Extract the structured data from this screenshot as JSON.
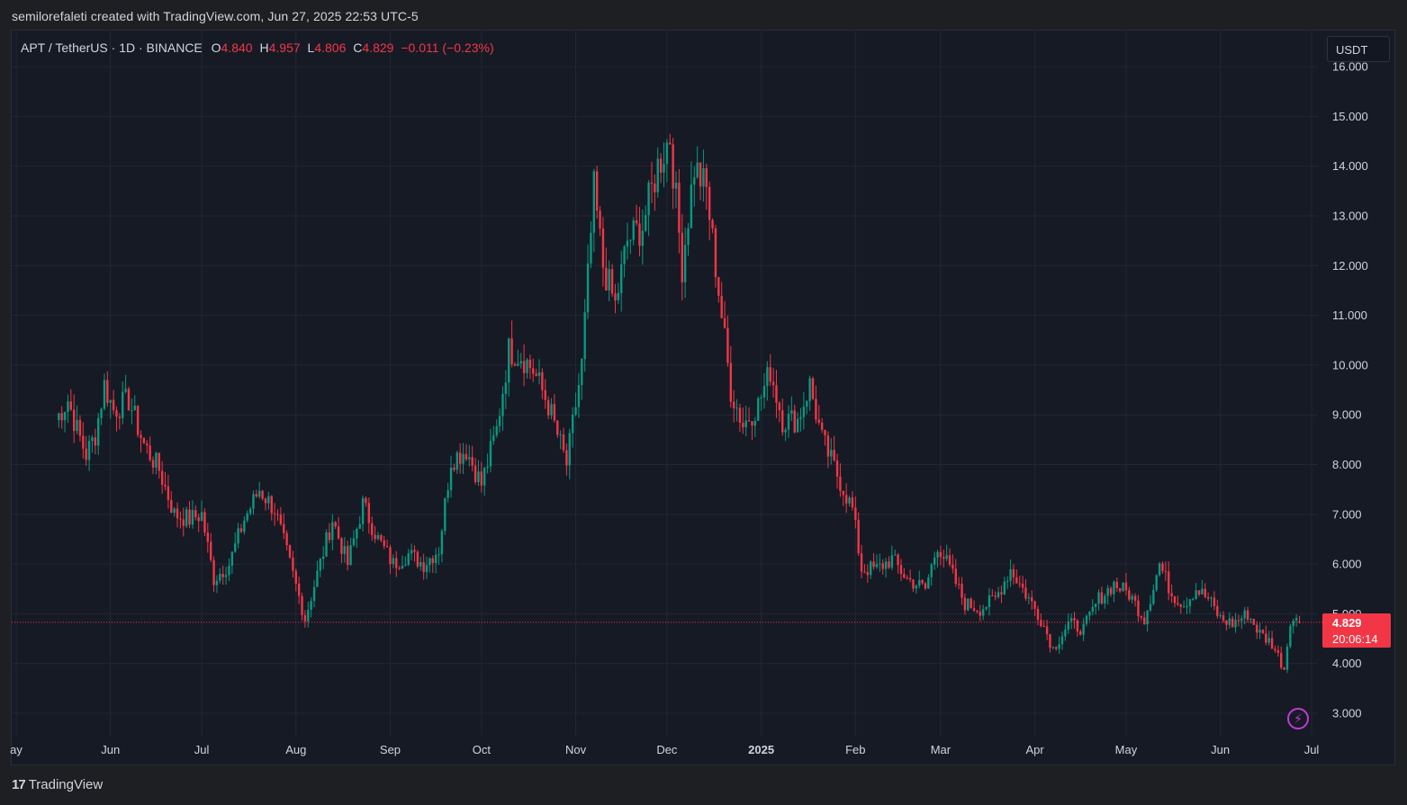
{
  "header": {
    "attribution": "semilorefaleti created with TradingView.com, Jun 27, 2025 22:53 UTC-5"
  },
  "legend": {
    "symbol": "APT / TetherUS · 1D · BINANCE",
    "o_label": "O",
    "o_value": "4.840",
    "h_label": "H",
    "h_value": "4.957",
    "l_label": "L",
    "l_value": "4.806",
    "c_label": "C",
    "c_value": "4.829",
    "change": "−0.011 (−0.23%)"
  },
  "currency_button": "USDT",
  "last_price": {
    "price": "4.829",
    "countdown": "20:06:14"
  },
  "footer": {
    "logo_glyph": "17",
    "brand": "TradingView"
  },
  "colors": {
    "up": "#089981",
    "down": "#f23645",
    "background": "#161a25",
    "grid": "#232734",
    "price_line": "#f23645",
    "accent": "#c23bd4"
  },
  "chart_data": {
    "type": "candlestick",
    "ylim": [
      2.5,
      16.2
    ],
    "y_ticks": [
      "3.000",
      "4.000",
      "5.000",
      "6.000",
      "7.000",
      "8.000",
      "9.000",
      "10.000",
      "11.000",
      "12.000",
      "13.000",
      "14.000",
      "15.000",
      "16.000"
    ],
    "x_ticks": [
      "ay",
      "Jun",
      "Jul",
      "Aug",
      "Sep",
      "Oct",
      "Nov",
      "Dec",
      "2025",
      "Feb",
      "Mar",
      "Apr",
      "May",
      "Jun",
      "Jul"
    ],
    "x_tick_bold": "2025",
    "close_path": [
      [
        "2024-05-14",
        8.9
      ],
      [
        "2024-05-18",
        9.3
      ],
      [
        "2024-05-21",
        8.7
      ],
      [
        "2024-05-24",
        8.2
      ],
      [
        "2024-05-27",
        8.6
      ],
      [
        "2024-05-30",
        9.6
      ],
      [
        "2024-06-02",
        9.1
      ],
      [
        "2024-06-07",
        9.3
      ],
      [
        "2024-06-12",
        8.4
      ],
      [
        "2024-06-17",
        7.9
      ],
      [
        "2024-06-22",
        7.0
      ],
      [
        "2024-06-27",
        6.9
      ],
      [
        "2024-07-01",
        7.0
      ],
      [
        "2024-07-05",
        5.7
      ],
      [
        "2024-07-10",
        6.0
      ],
      [
        "2024-07-15",
        6.9
      ],
      [
        "2024-07-20",
        7.5
      ],
      [
        "2024-07-25",
        7.1
      ],
      [
        "2024-07-30",
        6.0
      ],
      [
        "2024-08-04",
        4.9
      ],
      [
        "2024-08-08",
        5.8
      ],
      [
        "2024-08-13",
        6.9
      ],
      [
        "2024-08-18",
        6.0
      ],
      [
        "2024-08-23",
        7.2
      ],
      [
        "2024-08-28",
        6.5
      ],
      [
        "2024-09-02",
        6.0
      ],
      [
        "2024-09-07",
        6.2
      ],
      [
        "2024-09-12",
        6.0
      ],
      [
        "2024-09-17",
        6.3
      ],
      [
        "2024-09-21",
        8.1
      ],
      [
        "2024-09-26",
        8.3
      ],
      [
        "2024-10-01",
        7.6
      ],
      [
        "2024-10-06",
        8.7
      ],
      [
        "2024-10-10",
        10.3
      ],
      [
        "2024-10-14",
        10.2
      ],
      [
        "2024-10-18",
        9.9
      ],
      [
        "2024-10-23",
        9.2
      ],
      [
        "2024-10-29",
        8.0
      ],
      [
        "2024-11-03",
        10.0
      ],
      [
        "2024-11-07",
        13.5
      ],
      [
        "2024-11-10",
        12.0
      ],
      [
        "2024-11-14",
        11.2
      ],
      [
        "2024-11-18",
        12.5
      ],
      [
        "2024-11-23",
        12.8
      ],
      [
        "2024-11-28",
        14.0
      ],
      [
        "2024-12-02",
        14.6
      ],
      [
        "2024-12-06",
        12.0
      ],
      [
        "2024-12-10",
        14.0
      ],
      [
        "2024-12-14",
        13.5
      ],
      [
        "2024-12-18",
        11.5
      ],
      [
        "2024-12-22",
        9.5
      ],
      [
        "2024-12-26",
        8.8
      ],
      [
        "2024-12-31",
        9.2
      ],
      [
        "2025-01-04",
        9.9
      ],
      [
        "2025-01-08",
        8.9
      ],
      [
        "2025-01-13",
        8.9
      ],
      [
        "2025-01-17",
        9.6
      ],
      [
        "2025-01-21",
        8.5
      ],
      [
        "2025-01-26",
        7.8
      ],
      [
        "2025-01-31",
        7.1
      ],
      [
        "2025-02-03",
        5.9
      ],
      [
        "2025-02-08",
        5.9
      ],
      [
        "2025-02-13",
        6.1
      ],
      [
        "2025-02-18",
        5.7
      ],
      [
        "2025-02-24",
        5.5
      ],
      [
        "2025-02-28",
        6.4
      ],
      [
        "2025-03-04",
        5.9
      ],
      [
        "2025-03-09",
        5.2
      ],
      [
        "2025-03-14",
        5.1
      ],
      [
        "2025-03-19",
        5.3
      ],
      [
        "2025-03-24",
        5.9
      ],
      [
        "2025-03-29",
        5.4
      ],
      [
        "2025-04-03",
        4.9
      ],
      [
        "2025-04-07",
        4.3
      ],
      [
        "2025-04-12",
        4.8
      ],
      [
        "2025-04-17",
        4.7
      ],
      [
        "2025-04-22",
        5.3
      ],
      [
        "2025-04-27",
        5.6
      ],
      [
        "2025-05-02",
        5.4
      ],
      [
        "2025-05-07",
        4.9
      ],
      [
        "2025-05-12",
        6.0
      ],
      [
        "2025-05-16",
        5.4
      ],
      [
        "2025-05-20",
        5.2
      ],
      [
        "2025-05-24",
        5.5
      ],
      [
        "2025-05-28",
        5.3
      ],
      [
        "2025-06-01",
        4.9
      ],
      [
        "2025-06-05",
        4.8
      ],
      [
        "2025-06-10",
        5.0
      ],
      [
        "2025-06-14",
        4.6
      ],
      [
        "2025-06-18",
        4.4
      ],
      [
        "2025-06-22",
        3.9
      ],
      [
        "2025-06-24",
        4.9
      ],
      [
        "2025-06-27",
        4.829
      ]
    ]
  }
}
